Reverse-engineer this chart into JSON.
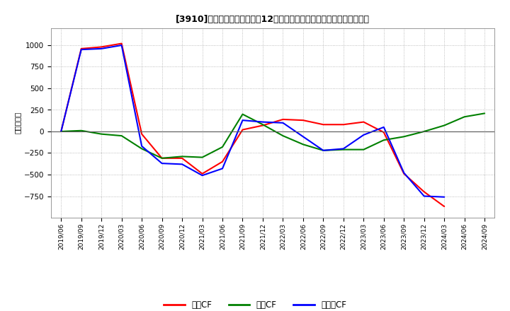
{
  "title": "[3910]　キャッシュフローの12か月移動合計の対前年同期増減額の推移",
  "ylabel": "（百万円）",
  "background_color": "#ffffff",
  "plot_bg_color": "#ffffff",
  "grid_color": "#aaaaaa",
  "x_labels": [
    "2019/06",
    "2019/09",
    "2019/12",
    "2020/03",
    "2020/06",
    "2020/09",
    "2020/12",
    "2021/03",
    "2021/06",
    "2021/09",
    "2021/12",
    "2022/03",
    "2022/06",
    "2022/09",
    "2022/12",
    "2023/03",
    "2023/06",
    "2023/09",
    "2023/12",
    "2024/03",
    "2024/06",
    "2024/09"
  ],
  "series": {
    "営業CF": [
      0,
      960,
      980,
      1020,
      -30,
      -310,
      -310,
      -490,
      -350,
      20,
      70,
      140,
      130,
      80,
      80,
      110,
      -10,
      -490,
      -700,
      -870,
      null,
      null
    ],
    "投資CF": [
      0,
      10,
      -30,
      -50,
      -200,
      -310,
      -290,
      -300,
      -180,
      200,
      80,
      -50,
      -150,
      -220,
      -210,
      -210,
      -100,
      -60,
      0,
      70,
      170,
      210
    ],
    "フリーCF": [
      0,
      950,
      960,
      1000,
      -170,
      -370,
      -380,
      -510,
      -430,
      130,
      110,
      100,
      -60,
      -220,
      -200,
      -40,
      50,
      -480,
      -750,
      -760,
      null,
      null
    ]
  },
  "series_order": [
    "営業CF",
    "投資CF",
    "フリーCF"
  ],
  "ylim": [
    -1000,
    1200
  ],
  "yticks": [
    -750,
    -500,
    -250,
    0,
    250,
    500,
    750,
    1000
  ],
  "line_colors": {
    "営業CF": "#ff0000",
    "投資CF": "#008000",
    "フリーCF": "#0000ff"
  },
  "line_width": 1.5
}
